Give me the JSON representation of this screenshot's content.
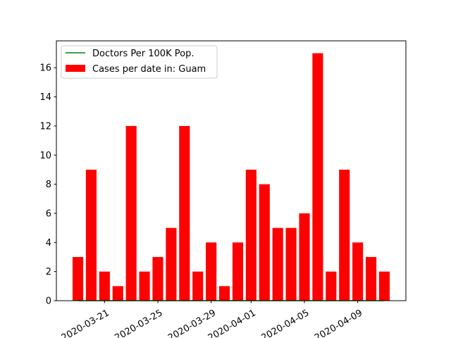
{
  "chart_data": {
    "type": "bar",
    "x": [
      "2020-03-19",
      "2020-03-20",
      "2020-03-21",
      "2020-03-22",
      "2020-03-23",
      "2020-03-24",
      "2020-03-25",
      "2020-03-26",
      "2020-03-27",
      "2020-03-28",
      "2020-03-29",
      "2020-03-30",
      "2020-03-31",
      "2020-04-01",
      "2020-04-02",
      "2020-04-03",
      "2020-04-04",
      "2020-04-05",
      "2020-04-06",
      "2020-04-07",
      "2020-04-08",
      "2020-04-09",
      "2020-04-10",
      "2020-04-11"
    ],
    "series": [
      {
        "name": "Cases per date in: Guam",
        "type": "bar",
        "color": "#ff0000",
        "values": [
          3,
          9,
          2,
          1,
          12,
          2,
          3,
          5,
          12,
          2,
          4,
          1,
          4,
          9,
          8,
          5,
          5,
          6,
          17,
          2,
          9,
          4,
          3,
          2
        ]
      },
      {
        "name": "Doctors Per 100K Pop.",
        "type": "line",
        "color": "#008000",
        "values": [
          0,
          0,
          0,
          0,
          0,
          0,
          0,
          0,
          0,
          0,
          0,
          0,
          0,
          0,
          0,
          0,
          0,
          0,
          0,
          0,
          0,
          0,
          0,
          0
        ]
      }
    ],
    "xticks": [
      "2020-03-21",
      "2020-03-25",
      "2020-03-29",
      "2020-04-01",
      "2020-04-05",
      "2020-04-09"
    ],
    "yticks": [
      0,
      2,
      4,
      6,
      8,
      10,
      12,
      14,
      16
    ],
    "ylim": [
      0,
      17.85
    ],
    "xtick_rotation": 30,
    "legend": {
      "placement": "upper-left",
      "entries": [
        "Doctors Per 100K Pop.",
        "Cases per date in: Guam"
      ]
    },
    "grid": false
  }
}
